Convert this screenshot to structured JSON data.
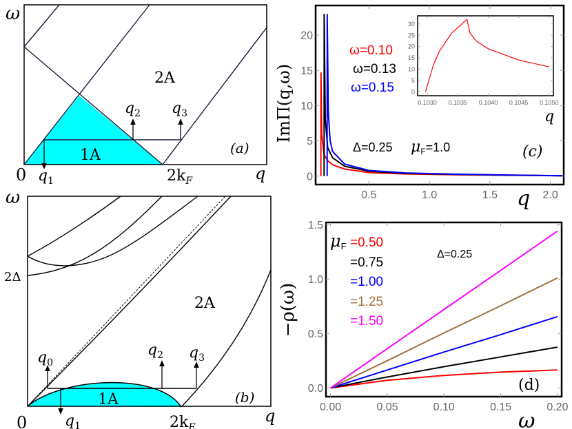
{
  "panel_a": {
    "tag": "(a)",
    "omega_label": "ω",
    "origin_label": "0",
    "q_label": "q",
    "two_kf_label": "2k",
    "two_kf_sub": "F",
    "region_2a": "2A",
    "region_1a": "1A",
    "q1": "q",
    "q1_sub": "1",
    "q2": "q",
    "q2_sub": "2",
    "q3": "q",
    "q3_sub": "3",
    "fill_color": "#00ffff"
  },
  "panel_b": {
    "tag": "(b)",
    "omega_label": "ω",
    "two_delta_label": "2Δ",
    "origin_label": "0",
    "q_label": "q",
    "two_kf_label": "2k",
    "two_kf_sub": "F",
    "region_2a": "2A",
    "region_1a": "1A",
    "q0": "q",
    "q0_sub": "0",
    "q1": "q",
    "q1_sub": "1",
    "q2": "q",
    "q2_sub": "2",
    "q3": "q",
    "q3_sub": "3",
    "fill_color": "#00ffff"
  },
  "chart_data": [
    {
      "id": "c",
      "type": "line",
      "tag": "(c)",
      "xlabel": "q",
      "ylabel": "ImΠ(q,ω)",
      "xlim": [
        0.06,
        2.11
      ],
      "ylim": [
        -1.2,
        24.2
      ],
      "xticks": [
        "0.5",
        "1.0",
        "1.5",
        "2.0"
      ],
      "yticks": [
        "0",
        "5",
        "10",
        "15",
        "20"
      ],
      "grid": false,
      "annotations": [
        "Δ=0.25",
        "μ",
        "F",
        "=1.0"
      ],
      "series": [
        {
          "name": "ω=0.10",
          "color": "#ff0000",
          "x": [
            0.103,
            0.1037,
            0.11,
            0.13,
            0.16,
            0.2,
            0.3,
            0.5,
            0.8,
            1.2,
            1.6,
            2.1
          ],
          "y": [
            0,
            14.7,
            6,
            3,
            2.2,
            1.6,
            1.0,
            0.5,
            0.3,
            0.2,
            0.12,
            0.05
          ]
        },
        {
          "name": "ω=0.13",
          "color": "#000000",
          "x": [
            0.13,
            0.1305,
            0.14,
            0.16,
            0.2,
            0.3,
            0.5,
            0.8,
            1.2,
            1.6,
            2.1
          ],
          "y": [
            0,
            23,
            8,
            4,
            2.6,
            1.4,
            0.7,
            0.4,
            0.25,
            0.15,
            0.05
          ]
        },
        {
          "name": "ω=0.15",
          "color": "#0000ff",
          "x": [
            0.155,
            0.1555,
            0.165,
            0.18,
            0.2,
            0.3,
            0.5,
            0.8,
            1.2,
            1.6,
            2.1
          ],
          "y": [
            0,
            23,
            9,
            5,
            3.5,
            1.7,
            0.8,
            0.45,
            0.28,
            0.17,
            0.05
          ]
        }
      ],
      "inset": {
        "xlabel": "q",
        "xlim": [
          0.10284,
          0.10507
        ],
        "ylim": [
          -1.8,
          33.6
        ],
        "xticks": [
          "0.1030",
          "0.1035",
          "0.1040",
          "0.1045",
          "0.1050"
        ],
        "yticks": [
          "0",
          "5",
          "10",
          "15",
          "20",
          "25",
          "30"
        ],
        "series": [
          {
            "color": "#ff0000",
            "x": [
              0.10297,
              0.1031,
              0.1032,
              0.1034,
              0.10365,
              0.1037,
              0.1038,
              0.104,
              0.1045,
              0.105
            ],
            "y": [
              0,
              12,
              18,
              26,
              32,
              26,
              22.5,
              19,
              14,
              11
            ]
          }
        ]
      }
    },
    {
      "id": "d",
      "type": "line",
      "tag": "(d)",
      "xlabel": "ω",
      "ylabel": "−ρ(ω)",
      "xlim": [
        -0.004,
        0.2037
      ],
      "ylim": [
        -0.08,
        1.52
      ],
      "xticks": [
        "0.00",
        "0.05",
        "0.10",
        "0.15",
        "0.20"
      ],
      "yticks": [
        "0.0",
        "0.5",
        "1.0",
        "1.5"
      ],
      "grid": false,
      "legend_title": "μ",
      "legend_title_sub": "F",
      "annotation": "Δ=0.25",
      "series": [
        {
          "name": "=0.50",
          "color": "#ff0000",
          "x": [
            0,
            0.05,
            0.1,
            0.15,
            0.2
          ],
          "y": [
            0,
            0.07,
            0.115,
            0.145,
            0.165
          ]
        },
        {
          "name": "=0.75",
          "color": "#000000",
          "x": [
            0,
            0.05,
            0.1,
            0.15,
            0.2
          ],
          "y": [
            0,
            0.1,
            0.195,
            0.285,
            0.375
          ]
        },
        {
          "name": "=1.00",
          "color": "#0000ff",
          "x": [
            0,
            0.05,
            0.1,
            0.15,
            0.2
          ],
          "y": [
            0,
            0.165,
            0.33,
            0.49,
            0.655
          ]
        },
        {
          "name": "=1.25",
          "color": "#a0703c",
          "x": [
            0,
            0.05,
            0.1,
            0.15,
            0.2
          ],
          "y": [
            0,
            0.25,
            0.505,
            0.755,
            1.01
          ]
        },
        {
          "name": "=1.50",
          "color": "#ff00ff",
          "x": [
            0,
            0.05,
            0.1,
            0.15,
            0.2
          ],
          "y": [
            0,
            0.36,
            0.72,
            1.08,
            1.44
          ]
        }
      ]
    }
  ]
}
